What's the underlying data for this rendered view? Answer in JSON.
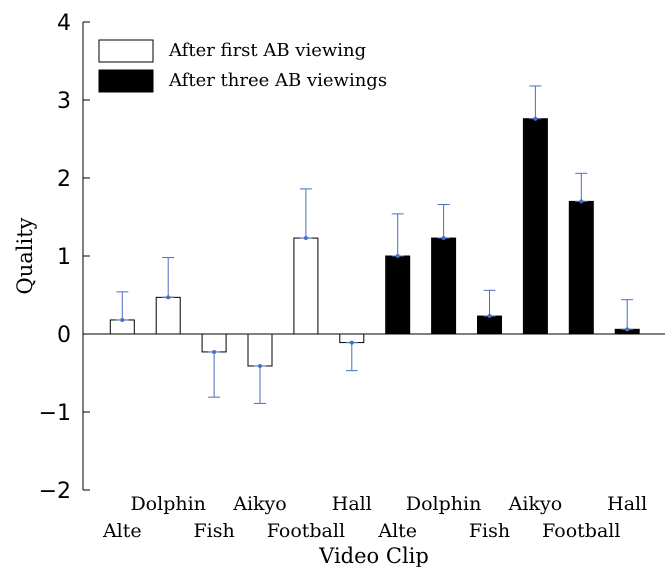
{
  "chart_data": {
    "type": "bar",
    "xlabel": "Video Clip",
    "ylabel": "Quality",
    "ylim": [
      -2,
      4
    ],
    "yticks": [
      -2,
      -1,
      0,
      1,
      2,
      3,
      4
    ],
    "ytick_labels": [
      "−2",
      "−1",
      "0",
      "1",
      "2",
      "3",
      "4"
    ],
    "legend_position": "top-left",
    "grid": false,
    "colors": {
      "first": "#ffffff",
      "three": "#000000",
      "error": "#4a6fc4"
    },
    "series": [
      {
        "name": "After first AB viewing",
        "categories": [
          "Alte",
          "Dolphin",
          "Fish",
          "Aikyo",
          "Football",
          "Hall"
        ],
        "values": [
          0.18,
          0.47,
          -0.23,
          -0.41,
          1.23,
          -0.11
        ],
        "error_low": [
          0.18,
          0.47,
          -0.81,
          -0.89,
          1.23,
          -0.47
        ],
        "error_high": [
          0.54,
          0.98,
          -0.23,
          -0.41,
          1.86,
          -0.11
        ]
      },
      {
        "name": "After three AB viewings",
        "categories": [
          "Alte",
          "Dolphin",
          "Fish",
          "Aikyo",
          "Football",
          "Hall"
        ],
        "values": [
          1.0,
          1.23,
          0.23,
          2.76,
          1.7,
          0.06
        ],
        "error_low": [
          1.0,
          1.23,
          0.23,
          2.76,
          1.7,
          0.06
        ],
        "error_high": [
          1.54,
          1.66,
          0.56,
          3.18,
          2.06,
          0.44
        ]
      }
    ]
  }
}
